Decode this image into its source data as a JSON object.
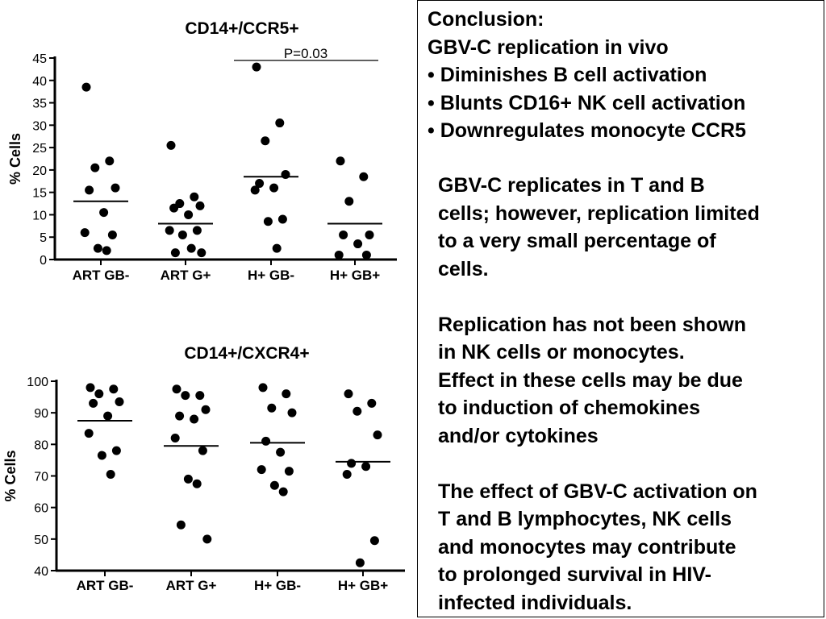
{
  "chart_data": [
    {
      "type": "scatter",
      "title": "CD14+/CCR5+",
      "ylabel": "% Cells",
      "ylim": [
        0,
        45
      ],
      "yticks": [
        0,
        5,
        10,
        15,
        20,
        25,
        30,
        35,
        40,
        45
      ],
      "categories": [
        "ART GB-",
        "ART G+",
        "H+ GB-",
        "H+ GB+"
      ],
      "points": [
        [
          38.5,
          22,
          20.5,
          16,
          15.5,
          10.5,
          6,
          5.5,
          2.5,
          2
        ],
        [
          25.5,
          14,
          12.5,
          12,
          11.5,
          10,
          6.5,
          6.5,
          5.5,
          2.5,
          1.5,
          1.5
        ],
        [
          43,
          30.5,
          26.5,
          19,
          17,
          16,
          15.5,
          9,
          8.5,
          2.5
        ],
        [
          22,
          18.5,
          13,
          5.5,
          5.5,
          3.5,
          1,
          1
        ]
      ],
      "means": [
        13,
        8,
        18.5,
        8
      ],
      "annotation": {
        "text": "P=0.03"
      }
    },
    {
      "type": "scatter",
      "title": "CD14+/CXCR4+",
      "ylabel": "% Cells",
      "ylim": [
        40,
        100
      ],
      "yticks": [
        40,
        50,
        60,
        70,
        80,
        90,
        100
      ],
      "categories": [
        "ART GB-",
        "ART G+",
        "H+ GB-",
        "H+ GB+"
      ],
      "points": [
        [
          98,
          97.5,
          96,
          93.5,
          93,
          89,
          83.5,
          78,
          76.5,
          70.5
        ],
        [
          97.5,
          95.5,
          95.5,
          91,
          89,
          88,
          82,
          78,
          69,
          67.5,
          54.5,
          50
        ],
        [
          98,
          96,
          91.5,
          90,
          81,
          77.5,
          72,
          71.5,
          67,
          65
        ],
        [
          96,
          93,
          90.5,
          83,
          74,
          73,
          70.5,
          49.5,
          42.5
        ]
      ],
      "means": [
        87.5,
        79.5,
        80.5,
        74.5
      ]
    }
  ],
  "panel": {
    "conclusion_lines": [
      "Conclusion:",
      "GBV-C replication in vivo",
      "• Diminishes B cell activation",
      "• Blunts CD16+ NK cell activation",
      "• Downregulates monocyte CCR5"
    ],
    "paragraphs": [
      [
        "GBV-C replicates in T and B",
        "cells; however, replication  limited",
        "to a very small percentage of",
        "cells."
      ],
      [
        "Replication has not been shown",
        "in NK cells or monocytes.",
        "Effect in these cells may be due",
        "to induction of chemokines",
        "and/or cytokines"
      ],
      [
        "The effect of GBV-C activation on",
        "T and B lymphocytes, NK cells",
        "and monocytes may contribute",
        "to prolonged survival in HIV-",
        "infected individuals."
      ]
    ]
  }
}
